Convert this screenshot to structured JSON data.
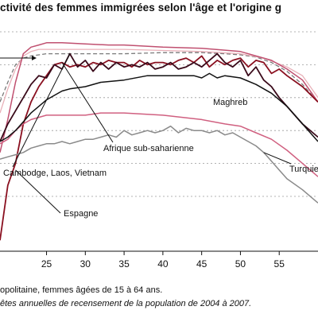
{
  "title_text": "ctivité des femmes immigrées selon l'âge et l'origine g",
  "footer": {
    "note": "opolitaine, femmes âgées de 15 à 64 ans.",
    "source": "êtes annuelles de recensement de la population de 2004 à 2007."
  },
  "chart_data": {
    "type": "line",
    "xlim": [
      19,
      60
    ],
    "ylim": [
      0,
      100
    ],
    "grid": "horizontal dashed",
    "legend": "none (direct labels)",
    "x_ticks": [
      25,
      30,
      35,
      40,
      45,
      50,
      55
    ],
    "series": [
      {
        "name": "",
        "color": "#7a7a7a",
        "dash": "5,3",
        "width": 1.3,
        "points": [
          [
            19,
            68
          ],
          [
            20,
            77
          ],
          [
            21,
            85
          ],
          [
            22,
            88
          ],
          [
            23,
            89
          ],
          [
            24,
            89.5
          ],
          [
            25,
            90
          ],
          [
            30,
            90
          ],
          [
            35,
            90
          ],
          [
            40,
            90.5
          ],
          [
            45,
            90.5
          ],
          [
            48,
            90
          ],
          [
            50,
            89.5
          ],
          [
            52,
            88.5
          ],
          [
            54,
            86
          ],
          [
            56,
            82
          ],
          [
            58,
            76
          ],
          [
            60,
            68
          ]
        ]
      },
      {
        "name": "",
        "color": "#e8b0b8",
        "dash": "",
        "width": 1.3,
        "points": [
          [
            19,
            63
          ],
          [
            20,
            74
          ],
          [
            21,
            83
          ],
          [
            22,
            89
          ],
          [
            23,
            91
          ],
          [
            24,
            92
          ],
          [
            25,
            92
          ],
          [
            30,
            92
          ],
          [
            35,
            92
          ],
          [
            40,
            91.5
          ],
          [
            45,
            91
          ],
          [
            50,
            90
          ],
          [
            53,
            88
          ],
          [
            56,
            84
          ],
          [
            58,
            80
          ],
          [
            60,
            70
          ]
        ]
      },
      {
        "name": "",
        "color": "#c05070",
        "dash": "",
        "width": 1.5,
        "points": [
          [
            19,
            45
          ],
          [
            20,
            60
          ],
          [
            21,
            77
          ],
          [
            22,
            90
          ],
          [
            23,
            93
          ],
          [
            24,
            94
          ],
          [
            25,
            95
          ],
          [
            27,
            95
          ],
          [
            30,
            94.5
          ],
          [
            33,
            94
          ],
          [
            35,
            94
          ],
          [
            40,
            93
          ],
          [
            45,
            92.5
          ],
          [
            50,
            91
          ],
          [
            54,
            87
          ],
          [
            56,
            83
          ],
          [
            58,
            78
          ],
          [
            60,
            68
          ]
        ]
      },
      {
        "name": "Espagne",
        "color": "#8a1020",
        "dash": "",
        "width": 1.8,
        "points": [
          [
            19,
            5
          ],
          [
            20,
            30
          ],
          [
            21,
            40
          ],
          [
            22,
            58
          ],
          [
            23,
            68
          ],
          [
            24,
            75
          ],
          [
            25,
            80
          ],
          [
            26,
            85
          ],
          [
            27,
            86
          ],
          [
            28,
            84
          ],
          [
            29,
            85
          ],
          [
            30,
            84
          ],
          [
            31,
            86
          ],
          [
            32,
            85
          ],
          [
            33,
            87
          ],
          [
            34,
            86
          ],
          [
            35,
            86
          ],
          [
            36,
            84
          ],
          [
            37,
            87
          ],
          [
            38,
            85
          ],
          [
            39,
            86
          ],
          [
            40,
            86
          ],
          [
            41,
            85
          ],
          [
            42,
            87
          ],
          [
            43,
            88
          ],
          [
            44,
            86
          ],
          [
            45,
            89
          ],
          [
            46,
            84
          ],
          [
            47,
            87
          ],
          [
            48,
            85
          ],
          [
            49,
            87
          ],
          [
            50,
            88
          ],
          [
            51,
            84
          ],
          [
            52,
            87
          ],
          [
            53,
            86
          ],
          [
            54,
            81
          ],
          [
            55,
            83
          ],
          [
            56,
            80
          ],
          [
            58,
            75
          ],
          [
            60,
            68
          ]
        ]
      },
      {
        "name": "Cambodge, Laos, Vietnam",
        "color": "#3a0a1a",
        "dash": "",
        "width": 1.8,
        "points": [
          [
            19,
            50
          ],
          [
            20,
            58
          ],
          [
            21,
            64
          ],
          [
            22,
            70
          ],
          [
            23,
            76
          ],
          [
            24,
            80
          ],
          [
            25,
            79
          ],
          [
            26,
            85
          ],
          [
            27,
            83
          ],
          [
            28,
            90
          ],
          [
            29,
            84
          ],
          [
            30,
            87
          ],
          [
            31,
            82
          ],
          [
            32,
            86
          ],
          [
            33,
            83
          ],
          [
            34,
            86
          ],
          [
            35,
            84
          ],
          [
            36,
            85
          ],
          [
            37,
            84
          ],
          [
            38,
            86
          ],
          [
            39,
            83
          ],
          [
            40,
            84
          ],
          [
            41,
            86
          ],
          [
            42,
            83
          ],
          [
            43,
            84
          ],
          [
            44,
            86
          ],
          [
            45,
            84
          ],
          [
            46,
            87
          ],
          [
            47,
            90
          ],
          [
            48,
            86
          ],
          [
            49,
            84
          ],
          [
            50,
            87
          ],
          [
            51,
            80
          ],
          [
            52,
            84
          ],
          [
            53,
            78
          ],
          [
            54,
            75
          ],
          [
            55,
            70
          ],
          [
            56,
            66
          ],
          [
            58,
            58
          ],
          [
            60,
            52
          ]
        ]
      },
      {
        "name": "Maghreb",
        "color": "#d06080",
        "dash": "",
        "width": 1.5,
        "points": [
          [
            19,
            49
          ],
          [
            20,
            51
          ],
          [
            21,
            55
          ],
          [
            22,
            58
          ],
          [
            23,
            60
          ],
          [
            24,
            61
          ],
          [
            25,
            62
          ],
          [
            27,
            62
          ],
          [
            30,
            62
          ],
          [
            32,
            63
          ],
          [
            35,
            63
          ],
          [
            40,
            62
          ],
          [
            45,
            60
          ],
          [
            48,
            58
          ],
          [
            50,
            57
          ],
          [
            52,
            54
          ],
          [
            54,
            51
          ],
          [
            56,
            46
          ],
          [
            58,
            40
          ],
          [
            60,
            34
          ]
        ]
      },
      {
        "name": "Afrique sub-saharienne",
        "color": "#111111",
        "dash": "",
        "width": 1.5,
        "points": [
          [
            19,
            50
          ],
          [
            20,
            52
          ],
          [
            21,
            55
          ],
          [
            22,
            59
          ],
          [
            23,
            63
          ],
          [
            24,
            66
          ],
          [
            25,
            69
          ],
          [
            26,
            71
          ],
          [
            27,
            73
          ],
          [
            28,
            74
          ],
          [
            30,
            75
          ],
          [
            32,
            77
          ],
          [
            35,
            78
          ],
          [
            38,
            80
          ],
          [
            40,
            80
          ],
          [
            42,
            80
          ],
          [
            44,
            80
          ],
          [
            45,
            79
          ],
          [
            46,
            81
          ],
          [
            47,
            79
          ],
          [
            48,
            80
          ],
          [
            50,
            79
          ],
          [
            52,
            76
          ],
          [
            54,
            72
          ],
          [
            56,
            66
          ],
          [
            58,
            58
          ],
          [
            60,
            50
          ]
        ]
      },
      {
        "name": "Turquie",
        "color": "#8a8a8a",
        "dash": "",
        "width": 1.5,
        "points": [
          [
            19,
            42
          ],
          [
            20,
            43
          ],
          [
            21,
            44
          ],
          [
            22,
            45
          ],
          [
            23,
            47
          ],
          [
            24,
            48
          ],
          [
            25,
            49
          ],
          [
            26,
            49
          ],
          [
            27,
            50
          ],
          [
            28,
            49
          ],
          [
            29,
            50
          ],
          [
            30,
            51
          ],
          [
            31,
            51
          ],
          [
            32,
            52
          ],
          [
            33,
            53
          ],
          [
            34,
            52
          ],
          [
            35,
            55
          ],
          [
            36,
            53
          ],
          [
            37,
            54
          ],
          [
            38,
            55
          ],
          [
            39,
            54
          ],
          [
            40,
            55
          ],
          [
            41,
            57
          ],
          [
            42,
            54
          ],
          [
            43,
            56
          ],
          [
            44,
            55
          ],
          [
            45,
            55
          ],
          [
            46,
            54
          ],
          [
            47,
            55
          ],
          [
            48,
            53
          ],
          [
            49,
            54
          ],
          [
            50,
            52
          ],
          [
            51,
            50
          ],
          [
            52,
            48
          ],
          [
            53,
            45
          ],
          [
            54,
            41
          ],
          [
            55,
            37
          ],
          [
            56,
            33
          ],
          [
            58,
            28
          ],
          [
            60,
            22
          ]
        ]
      }
    ]
  }
}
